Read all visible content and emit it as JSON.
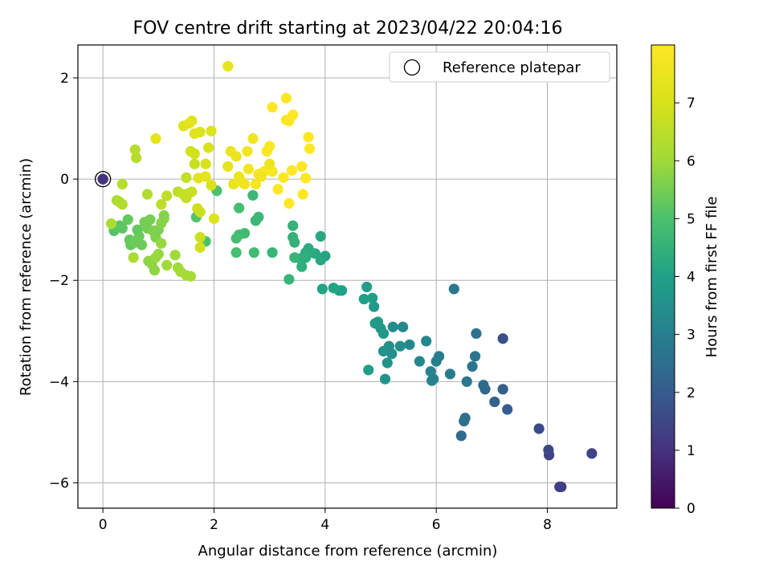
{
  "chart_data": {
    "type": "scatter",
    "title": "FOV centre drift starting at 2023/04/22 20:04:16",
    "xlabel": "Angular distance from reference (arcmin)",
    "ylabel": "Rotation from reference (arcmin)",
    "xlim": [
      -0.45,
      9.25
    ],
    "ylim": [
      -6.5,
      2.65
    ],
    "x_ticks": [
      0,
      2,
      4,
      6,
      8
    ],
    "y_ticks": [
      -6,
      -4,
      -2,
      0,
      2
    ],
    "grid": true,
    "legend": {
      "position": "top-right",
      "entries": [
        "Reference platepar"
      ]
    },
    "colorbar": {
      "label": "Hours from first FF file",
      "range": [
        0,
        8
      ],
      "ticks": [
        0,
        1,
        2,
        3,
        4,
        5,
        6,
        7
      ],
      "colormap": "viridis"
    },
    "reference": {
      "x": 0,
      "y": 0,
      "t": 1.0
    },
    "points": [
      [
        0.0,
        0.0,
        1.0
      ],
      [
        8.25,
        -6.08,
        1.2
      ],
      [
        8.22,
        -6.08,
        1.3
      ],
      [
        8.03,
        -5.45,
        1.4
      ],
      [
        8.02,
        -5.35,
        1.5
      ],
      [
        8.8,
        -5.42,
        1.4
      ],
      [
        7.85,
        -4.93,
        1.6
      ],
      [
        7.2,
        -3.15,
        1.7
      ],
      [
        7.28,
        -4.55,
        2.0
      ],
      [
        7.2,
        -4.15,
        2.1
      ],
      [
        7.05,
        -4.4,
        2.2
      ],
      [
        6.88,
        -4.15,
        2.3
      ],
      [
        6.85,
        -4.07,
        2.4
      ],
      [
        6.45,
        -5.07,
        2.4
      ],
      [
        6.52,
        -4.72,
        2.5
      ],
      [
        6.5,
        -4.78,
        2.6
      ],
      [
        6.72,
        -3.05,
        2.6
      ],
      [
        6.7,
        -3.5,
        2.7
      ],
      [
        6.65,
        -3.7,
        2.7
      ],
      [
        6.55,
        -4.0,
        2.8
      ],
      [
        6.32,
        -2.17,
        2.8
      ],
      [
        6.25,
        -3.85,
        2.9
      ],
      [
        6.05,
        -3.5,
        2.9
      ],
      [
        6.0,
        -3.6,
        3.0
      ],
      [
        5.95,
        -3.95,
        3.0
      ],
      [
        5.92,
        -3.98,
        3.1
      ],
      [
        5.9,
        -3.8,
        3.1
      ],
      [
        5.82,
        -3.2,
        3.2
      ],
      [
        5.7,
        -3.6,
        3.2
      ],
      [
        5.52,
        -3.27,
        3.3
      ],
      [
        5.4,
        -2.92,
        3.3
      ],
      [
        5.35,
        -3.3,
        3.4
      ],
      [
        5.22,
        -2.92,
        3.4
      ],
      [
        5.2,
        -3.45,
        3.5
      ],
      [
        5.15,
        -3.3,
        3.5
      ],
      [
        5.12,
        -3.63,
        3.6
      ],
      [
        5.08,
        -3.95,
        3.6
      ],
      [
        5.05,
        -3.4,
        3.6
      ],
      [
        5.05,
        -3.05,
        3.7
      ],
      [
        5.0,
        -2.95,
        3.7
      ],
      [
        4.95,
        -2.82,
        3.8
      ],
      [
        4.9,
        -2.85,
        3.8
      ],
      [
        4.88,
        -2.52,
        3.8
      ],
      [
        4.85,
        -2.35,
        3.9
      ],
      [
        4.78,
        -3.77,
        3.9
      ],
      [
        4.75,
        -2.13,
        3.9
      ],
      [
        4.7,
        -2.37,
        4.0
      ],
      [
        4.3,
        -2.2,
        4.0
      ],
      [
        4.25,
        -2.2,
        4.0
      ],
      [
        4.15,
        -2.15,
        4.1
      ],
      [
        3.95,
        -2.17,
        4.1
      ],
      [
        4.0,
        -1.52,
        4.1
      ],
      [
        3.92,
        -1.6,
        4.2
      ],
      [
        3.92,
        -1.13,
        4.2
      ],
      [
        3.82,
        -1.47,
        4.2
      ],
      [
        3.75,
        -1.45,
        4.3
      ],
      [
        3.7,
        -1.37,
        4.3
      ],
      [
        3.65,
        -1.45,
        4.3
      ],
      [
        3.65,
        -1.55,
        4.4
      ],
      [
        3.58,
        -1.73,
        4.4
      ],
      [
        3.55,
        -1.57,
        4.4
      ],
      [
        3.45,
        -1.25,
        4.5
      ],
      [
        3.42,
        -1.15,
        4.5
      ],
      [
        3.42,
        -0.92,
        4.5
      ],
      [
        3.45,
        -1.55,
        4.6
      ],
      [
        3.35,
        -1.98,
        4.6
      ],
      [
        3.05,
        -1.45,
        4.6
      ],
      [
        2.8,
        -0.75,
        4.7
      ],
      [
        2.75,
        -0.82,
        4.7
      ],
      [
        2.7,
        -0.32,
        4.7
      ],
      [
        2.72,
        -1.45,
        4.8
      ],
      [
        2.55,
        -1.07,
        4.8
      ],
      [
        2.45,
        -1.1,
        4.8
      ],
      [
        2.4,
        -1.45,
        4.9
      ],
      [
        2.4,
        -1.17,
        4.9
      ],
      [
        2.45,
        -0.57,
        4.9
      ],
      [
        2.05,
        -0.23,
        5.0
      ],
      [
        1.85,
        -1.23,
        5.0
      ],
      [
        1.68,
        -0.75,
        5.1
      ],
      [
        0.2,
        -1.02,
        5.1
      ],
      [
        0.3,
        -0.92,
        5.2
      ],
      [
        0.35,
        -0.97,
        5.2
      ],
      [
        0.45,
        -0.8,
        5.3
      ],
      [
        0.48,
        -1.2,
        5.3
      ],
      [
        0.5,
        -1.3,
        5.3
      ],
      [
        0.58,
        -1.25,
        5.4
      ],
      [
        0.65,
        -1.13,
        5.4
      ],
      [
        0.7,
        -1.3,
        5.4
      ],
      [
        0.75,
        -0.85,
        5.5
      ],
      [
        0.8,
        -0.97,
        5.5
      ],
      [
        0.85,
        -0.8,
        5.5
      ],
      [
        0.9,
        -1.02,
        5.6
      ],
      [
        0.95,
        -1.15,
        5.6
      ],
      [
        1.0,
        -1.0,
        5.6
      ],
      [
        1.05,
        -0.87,
        5.7
      ],
      [
        1.1,
        -0.72,
        5.7
      ],
      [
        1.1,
        -0.78,
        5.7
      ],
      [
        0.82,
        -1.62,
        5.8
      ],
      [
        0.88,
        -1.68,
        5.8
      ],
      [
        0.93,
        -1.8,
        5.8
      ],
      [
        0.95,
        -1.55,
        5.9
      ],
      [
        1.0,
        -1.48,
        5.9
      ],
      [
        1.05,
        -1.27,
        5.9
      ],
      [
        1.15,
        -1.7,
        6.0
      ],
      [
        1.3,
        -1.5,
        6.0
      ],
      [
        1.35,
        -1.75,
        6.0
      ],
      [
        1.4,
        -1.83,
        6.1
      ],
      [
        1.5,
        -1.9,
        6.1
      ],
      [
        1.58,
        -1.92,
        6.1
      ],
      [
        0.55,
        -1.55,
        6.2
      ],
      [
        0.15,
        -0.88,
        6.2
      ],
      [
        0.25,
        -0.42,
        6.2
      ],
      [
        0.3,
        -0.45,
        6.3
      ],
      [
        0.35,
        -0.5,
        6.3
      ],
      [
        0.8,
        -0.3,
        6.3
      ],
      [
        0.35,
        -0.1,
        6.4
      ],
      [
        0.6,
        0.42,
        6.4
      ],
      [
        0.58,
        0.58,
        6.4
      ],
      [
        1.05,
        -0.5,
        6.5
      ],
      [
        1.15,
        -0.33,
        6.5
      ],
      [
        1.35,
        -0.25,
        6.5
      ],
      [
        1.45,
        -0.3,
        6.6
      ],
      [
        1.5,
        -0.37,
        6.6
      ],
      [
        1.5,
        0.03,
        6.6
      ],
      [
        1.55,
        -0.28,
        6.7
      ],
      [
        1.6,
        -0.25,
        6.7
      ],
      [
        1.65,
        0.3,
        6.7
      ],
      [
        1.7,
        -0.58,
        6.8
      ],
      [
        1.75,
        -0.65,
        6.8
      ],
      [
        1.75,
        -1.15,
        6.8
      ],
      [
        1.75,
        -1.35,
        6.9
      ],
      [
        1.65,
        0.5,
        6.9
      ],
      [
        1.58,
        0.55,
        6.9
      ],
      [
        1.85,
        0.3,
        7.0
      ],
      [
        1.9,
        0.62,
        7.0
      ],
      [
        1.95,
        -0.12,
        7.0
      ],
      [
        1.95,
        0.95,
        7.1
      ],
      [
        2.0,
        -0.78,
        7.1
      ],
      [
        1.75,
        0.93,
        7.1
      ],
      [
        1.65,
        0.9,
        7.2
      ],
      [
        1.6,
        1.15,
        7.2
      ],
      [
        1.45,
        1.05,
        7.2
      ],
      [
        1.55,
        1.1,
        7.3
      ],
      [
        1.72,
        0.02,
        7.3
      ],
      [
        1.85,
        0.05,
        7.3
      ],
      [
        0.95,
        0.8,
        7.4
      ],
      [
        2.25,
        2.23,
        7.4
      ],
      [
        2.25,
        0.25,
        7.4
      ],
      [
        2.3,
        0.55,
        7.5
      ],
      [
        2.35,
        -0.1,
        7.5
      ],
      [
        2.4,
        0.45,
        7.5
      ],
      [
        2.45,
        0.05,
        7.6
      ],
      [
        2.5,
        -0.05,
        7.6
      ],
      [
        2.55,
        -0.1,
        7.6
      ],
      [
        2.6,
        0.55,
        7.7
      ],
      [
        2.62,
        0.2,
        7.7
      ],
      [
        2.7,
        0.8,
        7.7
      ],
      [
        2.75,
        -0.1,
        7.8
      ],
      [
        2.8,
        0.1,
        7.8
      ],
      [
        2.9,
        0.15,
        7.8
      ],
      [
        2.95,
        0.55,
        7.9
      ],
      [
        3.0,
        0.65,
        7.9
      ],
      [
        3.05,
        0.15,
        7.9
      ],
      [
        3.05,
        1.42,
        8.0
      ],
      [
        3.15,
        -0.2,
        8.0
      ],
      [
        3.25,
        0.03,
        8.0
      ],
      [
        3.3,
        1.6,
        8.1
      ],
      [
        3.3,
        1.17,
        8.1
      ],
      [
        3.35,
        1.15,
        8.1
      ],
      [
        3.35,
        -0.48,
        8.2
      ],
      [
        3.4,
        0.17,
        8.2
      ],
      [
        3.42,
        1.27,
        8.2
      ],
      [
        3.58,
        0.25,
        8.3
      ],
      [
        3.6,
        -0.3,
        8.3
      ],
      [
        3.65,
        0.02,
        8.3
      ],
      [
        3.7,
        0.83,
        8.4
      ],
      [
        3.72,
        0.6,
        8.4
      ],
      [
        3.0,
        0.3,
        7.6
      ],
      [
        2.85,
        0.05,
        7.6
      ],
      [
        0.62,
        -1.0,
        5.3
      ]
    ]
  }
}
